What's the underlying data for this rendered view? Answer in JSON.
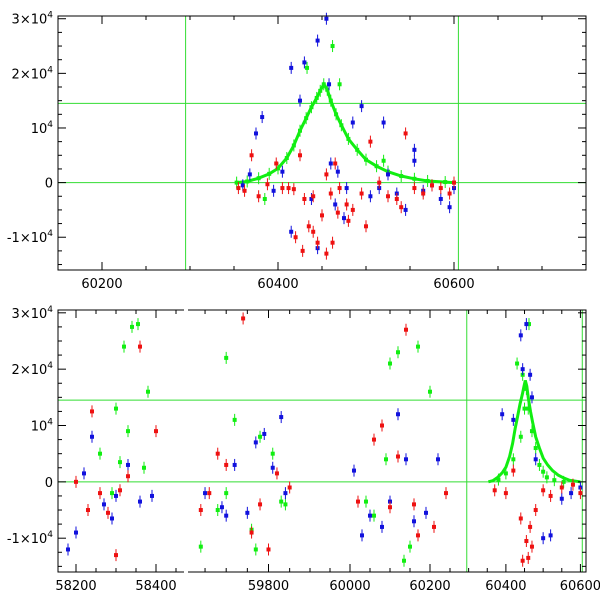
{
  "colors": {
    "red": "#ee1111",
    "blue": "#1111dd",
    "green": "#11ee11",
    "refline": "#33dd33"
  },
  "chart_data": [
    {
      "type": "scatter",
      "panel": "top",
      "title": "",
      "xlabel": "",
      "ylabel": "",
      "xlim": [
        60150,
        60750
      ],
      "ylim": [
        -16000,
        30500
      ],
      "x_ticks": [
        60200,
        60400,
        60600
      ],
      "x_tick_labels": [
        "60200",
        "60400",
        "60600"
      ],
      "y_ticks": [
        -10000,
        0,
        10000,
        20000,
        30000
      ],
      "y_tick_labels": [
        {
          "mant": "-1×10",
          "exp": "4"
        },
        {
          "mant": "0",
          "exp": ""
        },
        {
          "mant": "10",
          "exp": "4"
        },
        {
          "mant": "2×10",
          "exp": "4"
        },
        {
          "mant": "3×10",
          "exp": "4"
        }
      ],
      "reference_lines": {
        "horizontal": [
          14500,
          0
        ],
        "vertical": [
          60295,
          60605
        ]
      },
      "series": [
        {
          "color": "green",
          "x": [
            60353,
            60365,
            60378,
            60390,
            60400,
            60410,
            60418,
            60425,
            60432,
            60438,
            60444,
            60448,
            60452,
            60456,
            60460,
            60466,
            60472,
            60480,
            60490,
            60500,
            60512,
            60525,
            60540,
            60555,
            60570,
            60590,
            60600,
            60433,
            60462,
            60470,
            60385,
            60520
          ],
          "y": [
            0,
            200,
            800,
            1600,
            2600,
            4500,
            6800,
            9500,
            11800,
            13800,
            15500,
            16800,
            18000,
            17000,
            15000,
            12500,
            10500,
            8000,
            6000,
            4200,
            3000,
            2000,
            1200,
            700,
            300,
            100,
            0,
            21000,
            25000,
            18000,
            -3000,
            4000
          ]
        },
        {
          "color": "blue",
          "x": [
            60360,
            60368,
            60375,
            60382,
            60395,
            60405,
            60415,
            60425,
            60430,
            60438,
            60445,
            60455,
            60460,
            60468,
            60478,
            60485,
            60495,
            60505,
            60515,
            60525,
            60535,
            60545,
            60555,
            60565,
            60575,
            60585,
            60595,
            60600,
            60415,
            60458,
            60520,
            60465,
            60475,
            60555,
            60445
          ],
          "y": [
            -500,
            1500,
            9000,
            12000,
            -1500,
            2000,
            21000,
            15000,
            22000,
            -3000,
            26000,
            30000,
            3500,
            2000,
            -1000,
            11000,
            14000,
            -2500,
            -1000,
            1500,
            -2000,
            -5000,
            4000,
            -1500,
            -500,
            -3000,
            -4500,
            -1000,
            -9000,
            18000,
            11000,
            -4000,
            -6500,
            6000,
            -12000
          ]
        },
        {
          "color": "red",
          "x": [
            60355,
            60362,
            60370,
            60378,
            60388,
            60398,
            60405,
            60412,
            60418,
            60425,
            60430,
            60435,
            60440,
            60445,
            60450,
            60455,
            60460,
            60465,
            60470,
            60478,
            60485,
            60495,
            60505,
            60515,
            60525,
            60535,
            60545,
            60555,
            60565,
            60575,
            60585,
            60595,
            60600,
            60420,
            60440,
            60455,
            60468,
            60480,
            60500,
            60540,
            60428,
            60462
          ],
          "y": [
            -1000,
            -1500,
            5000,
            -2500,
            -300,
            3500,
            -1000,
            -1000,
            -1200,
            5000,
            -3000,
            -8000,
            -2500,
            -11000,
            -6000,
            -13000,
            -2000,
            3500,
            -1000,
            -4000,
            -5000,
            -2000,
            7500,
            0,
            -2500,
            -3000,
            9000,
            -1000,
            -2000,
            -500,
            -1000,
            -2000,
            0,
            -10000,
            -9000,
            1500,
            -5500,
            -7000,
            -8000,
            -4500,
            -12500,
            -11000
          ]
        }
      ]
    },
    {
      "type": "scatter",
      "panel": "bottom",
      "title": "",
      "xlabel": "",
      "ylabel": "",
      "segments": [
        {
          "range": [
            58155,
            58475
          ],
          "ticks": [
            58200,
            58400
          ]
        },
        {
          "range": [
            59605,
            59865
          ],
          "ticks": [
            59800
          ]
        },
        {
          "range": [
            59865,
            60250
          ],
          "ticks": [
            60000,
            60200
          ]
        },
        {
          "range": [
            60250,
            60615
          ],
          "ticks": [
            60400,
            60600
          ]
        }
      ],
      "x_tick_labels": [
        "58200",
        "58400",
        "59800",
        "60000",
        "60200",
        "60400",
        "60600"
      ],
      "ylim": [
        -16000,
        30500
      ],
      "y_ticks": [
        -10000,
        0,
        10000,
        20000,
        30000
      ],
      "y_tick_labels": [
        {
          "mant": "-1×10",
          "exp": "4"
        },
        {
          "mant": "0",
          "exp": ""
        },
        {
          "mant": "10",
          "exp": "4"
        },
        {
          "mant": "2×10",
          "exp": "4"
        },
        {
          "mant": "3×10",
          "exp": "4"
        }
      ],
      "reference_lines": {
        "horizontal": [
          14500,
          0
        ],
        "vertical": [
          60295,
          60605
        ]
      },
      "series": [
        {
          "color": "green",
          "x": [
            58300,
            58320,
            58340,
            58355,
            58310,
            58330,
            58290,
            58370,
            58380,
            58260,
            59700,
            59720,
            59760,
            59810,
            59770,
            59840,
            59680,
            59640,
            59700,
            59780,
            59830,
            60100,
            60120,
            60150,
            60170,
            60200,
            60090,
            60060,
            60040,
            60135,
            60380,
            60400,
            60420,
            60440,
            60450,
            60455,
            60460,
            60470,
            60480,
            60490,
            60500,
            60510,
            60530,
            60555,
            60430,
            60445,
            60462
          ],
          "y": [
            13000,
            24000,
            27500,
            28000,
            3500,
            9000,
            -2000,
            2500,
            16000,
            5000,
            -2000,
            11000,
            -8500,
            5000,
            -12000,
            -4000,
            -5000,
            -11500,
            22000,
            8000,
            -3500,
            21000,
            23000,
            -11500,
            24000,
            16000,
            4000,
            -6000,
            -3500,
            -14000,
            400,
            1500,
            4000,
            8000,
            13000,
            16500,
            13000,
            9000,
            6000,
            3000,
            1800,
            800,
            300,
            0,
            21000,
            19000,
            28000
          ]
        },
        {
          "color": "blue",
          "x": [
            58180,
            58200,
            58240,
            58270,
            58300,
            58330,
            58360,
            58390,
            58220,
            58290,
            59650,
            59690,
            59720,
            59750,
            59790,
            59830,
            59700,
            59770,
            59810,
            59840,
            60010,
            60050,
            60080,
            60120,
            60160,
            60190,
            60220,
            60030,
            60100,
            60140,
            60390,
            60420,
            60445,
            60455,
            60465,
            60480,
            60500,
            60520,
            60550,
            60575,
            60600,
            60440,
            60470
          ],
          "y": [
            -12000,
            -9000,
            8000,
            -4000,
            -2500,
            3000,
            -3500,
            -2500,
            1500,
            -6500,
            -2000,
            -4500,
            3000,
            -5500,
            8500,
            11500,
            -6000,
            7000,
            2500,
            -2000,
            2000,
            -6000,
            -8000,
            12000,
            -7000,
            -5500,
            4000,
            -9500,
            -3500,
            4000,
            12000,
            11000,
            20000,
            28000,
            19000,
            4000,
            -10000,
            -9500,
            -3000,
            -2000,
            -1000,
            26000,
            15000
          ]
        },
        {
          "color": "red",
          "x": [
            58200,
            58240,
            58280,
            58310,
            58330,
            58360,
            58400,
            58230,
            58300,
            58260,
            59660,
            59700,
            59740,
            59780,
            59820,
            59850,
            59640,
            59680,
            59760,
            59800,
            60020,
            60060,
            60100,
            60140,
            60170,
            60210,
            60240,
            60080,
            60120,
            60160,
            60370,
            60400,
            60420,
            60440,
            60455,
            60465,
            60480,
            60500,
            60520,
            60550,
            60580,
            60600,
            60445,
            60460,
            60470
          ],
          "y": [
            0,
            12500,
            -5500,
            -1500,
            1000,
            24000,
            9000,
            -5000,
            -13000,
            -2000,
            -2000,
            3000,
            29000,
            -4000,
            1500,
            -1000,
            -5000,
            5000,
            -9000,
            -12000,
            -3500,
            7500,
            -4500,
            27000,
            -9500,
            -8000,
            -2000,
            10000,
            4500,
            -4000,
            -1500,
            -2000,
            2000,
            -6500,
            -10500,
            -8000,
            -5000,
            -1500,
            -2500,
            -1000,
            -500,
            -2000,
            -14000,
            -13500,
            -11500
          ]
        }
      ]
    }
  ]
}
